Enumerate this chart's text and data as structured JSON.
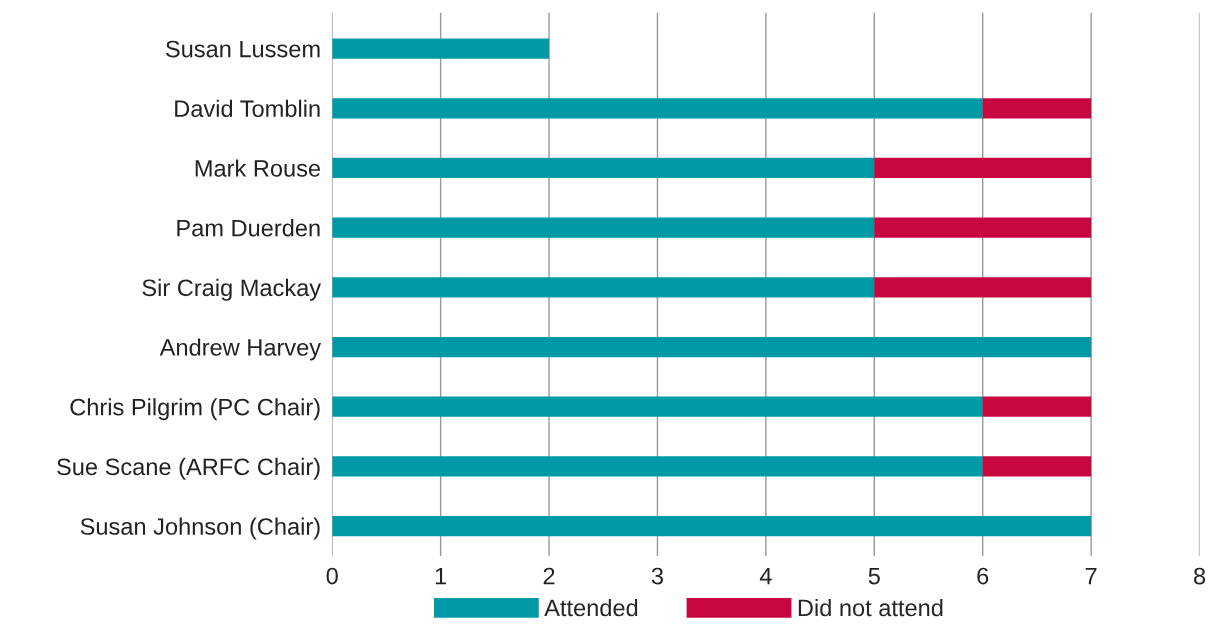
{
  "chart_data": {
    "type": "bar",
    "orientation": "horizontal",
    "stacked": true,
    "categories": [
      "Susan Lussem",
      "David Tomblin",
      "Mark Rouse",
      "Pam Duerden",
      "Sir Craig Mackay",
      "Andrew Harvey",
      "Chris Pilgrim (PC Chair)",
      "Sue Scane (ARFC Chair)",
      "Susan Johnson (Chair)"
    ],
    "series": [
      {
        "name": "Attended",
        "color": "#009aa6",
        "values": [
          2,
          6,
          5,
          5,
          5,
          7,
          6,
          6,
          7
        ]
      },
      {
        "name": "Did not attend",
        "color": "#c8063f",
        "values": [
          null,
          1,
          2,
          2,
          2,
          null,
          1,
          1,
          null
        ]
      }
    ],
    "xlim": [
      0,
      8
    ],
    "xticks": [
      0,
      1,
      2,
      3,
      4,
      5,
      6,
      7,
      8
    ],
    "grid": "x",
    "legend": "bottom"
  }
}
